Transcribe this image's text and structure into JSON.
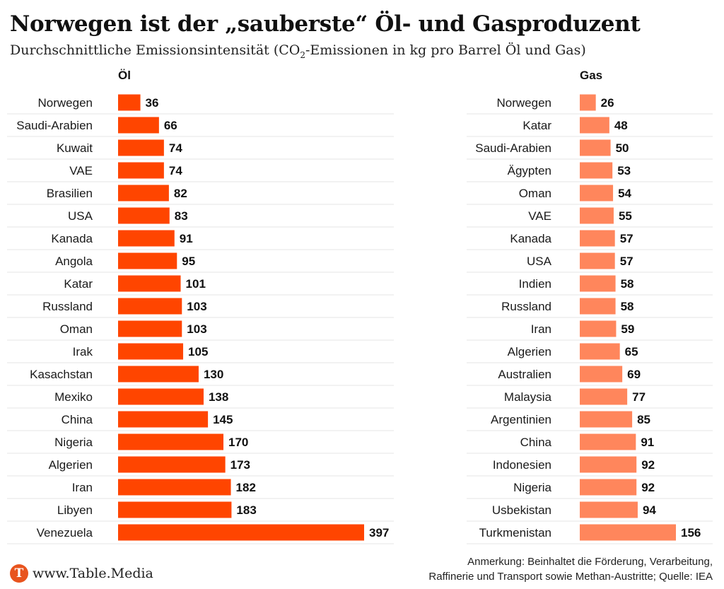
{
  "title": "Norwegen ist der „sauberste“ Öl- und Gasproduzent",
  "subtitle": {
    "before": "Durchschnittliche Emissionsintensität (CO",
    "sub": "2",
    "after": "-Emissionen in kg pro Barrel Öl und Gas)"
  },
  "colors": {
    "oil_bar": "#ff4500",
    "gas_bar": "#ff865c",
    "gridline": "#e6e6e6",
    "logo": "#e8541e"
  },
  "chart_data": [
    {
      "type": "bar",
      "orientation": "horizontal",
      "title": "Öl",
      "categories": [
        "Norwegen",
        "Saudi-Arabien",
        "Kuwait",
        "VAE",
        "Brasilien",
        "USA",
        "Kanada",
        "Angola",
        "Katar",
        "Russland",
        "Oman",
        "Irak",
        "Kasachstan",
        "Mexiko",
        "China",
        "Nigeria",
        "Algerien",
        "Iran",
        "Libyen",
        "Venezuela"
      ],
      "values": [
        36,
        66,
        74,
        74,
        82,
        83,
        91,
        95,
        101,
        103,
        103,
        105,
        130,
        138,
        145,
        170,
        173,
        182,
        183,
        397
      ],
      "xlim": [
        0,
        397
      ],
      "grid": "row separators",
      "data_labels": true
    },
    {
      "type": "bar",
      "orientation": "horizontal",
      "title": "Gas",
      "categories": [
        "Norwegen",
        "Katar",
        "Saudi-Arabien",
        "Ägypten",
        "Oman",
        "VAE",
        "Kanada",
        "USA",
        "Indien",
        "Russland",
        "Iran",
        "Algerien",
        "Australien",
        "Malaysia",
        "Argentinien",
        "China",
        "Indonesien",
        "Nigeria",
        "Usbekistan",
        "Turkmenistan"
      ],
      "values": [
        26,
        48,
        50,
        53,
        54,
        55,
        57,
        57,
        58,
        58,
        59,
        65,
        69,
        77,
        85,
        91,
        92,
        92,
        94,
        156
      ],
      "xlim": [
        0,
        156
      ],
      "grid": "row separators",
      "data_labels": true
    }
  ],
  "footer": {
    "logo_letter": "T",
    "logo_text": "www.Table.Media",
    "note_line1": "Anmerkung: Beinhaltet die Förderung, Verarbeitung,",
    "note_line2": "Raffinerie und Transport sowie Methan-Austritte; Quelle: IEA"
  }
}
